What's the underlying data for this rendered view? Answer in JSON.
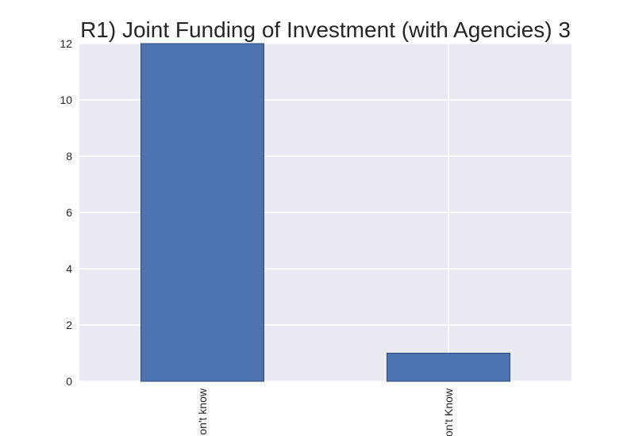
{
  "chart_data": {
    "type": "bar",
    "title": "R1) Joint Funding of Investment (with Agencies) 3",
    "categories": [
      "on't know",
      "on't Know"
    ],
    "values": [
      12,
      1
    ],
    "xlabel": "",
    "ylabel": "",
    "ylim": [
      0,
      12
    ],
    "yticks": [
      0,
      2,
      4,
      6,
      8,
      10,
      12
    ],
    "grid": true,
    "legend": "none",
    "colors": {
      "bar": "#4c72b0",
      "bar_edge": "#2f4a78",
      "plot_background": "#eaeaf2",
      "grid": "#ffffff",
      "text": "#262626"
    }
  }
}
